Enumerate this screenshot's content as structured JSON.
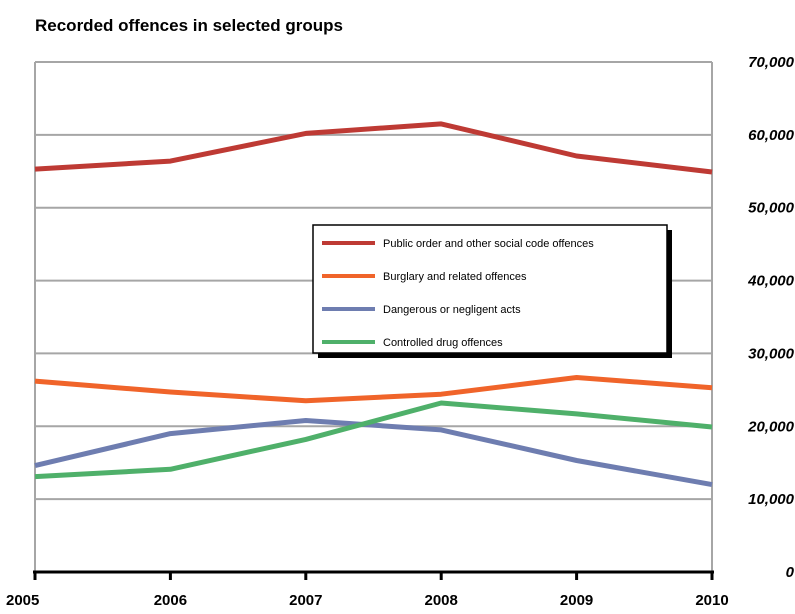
{
  "chart_data": {
    "type": "line",
    "title": "Recorded offences in selected groups",
    "x": [
      "2005",
      "2006",
      "2007",
      "2008",
      "2009",
      "2010"
    ],
    "ylim": [
      0,
      70000
    ],
    "yticks": [
      0,
      10000,
      20000,
      30000,
      40000,
      50000,
      60000,
      70000
    ],
    "ytick_labels": [
      "0",
      "10,000",
      "20,000",
      "30,000",
      "40,000",
      "50,000",
      "60,000",
      "70,000"
    ],
    "y_axis_side": "right",
    "grid": true,
    "legend_position": "center-right",
    "series": [
      {
        "name": "Public order and other social code offences",
        "color": "#be3a34",
        "values": [
          55300,
          56400,
          60200,
          61500,
          57100,
          54900
        ]
      },
      {
        "name": "Burglary and related offences",
        "color": "#f0642a",
        "values": [
          26200,
          24700,
          23500,
          24400,
          26700,
          25300
        ]
      },
      {
        "name": "Dangerous or negligent acts",
        "color": "#6e7db0",
        "values": [
          14600,
          19000,
          20800,
          19500,
          15300,
          12000
        ]
      },
      {
        "name": "Controlled drug offences",
        "color": "#4fb06a",
        "values": [
          13100,
          14100,
          18200,
          23200,
          21700,
          19900
        ]
      }
    ]
  }
}
